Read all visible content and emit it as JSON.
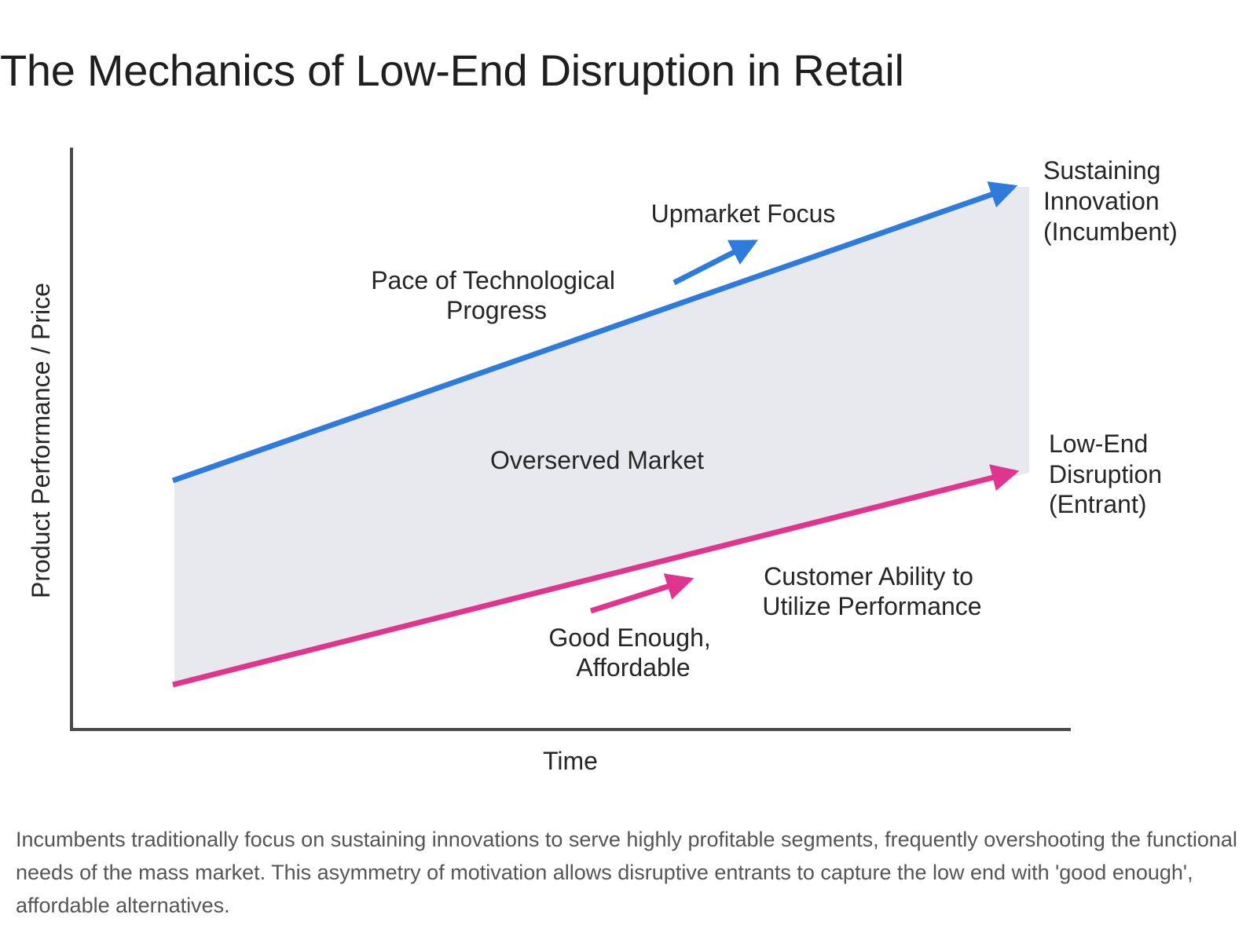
{
  "title": "The Mechanics of Low-End Disruption in Retail",
  "axes": {
    "x_label": "Time",
    "y_label": "Product Performance / Price"
  },
  "region_label": "Overserved Market",
  "incumbent": {
    "end_label": [
      "Sustaining",
      "Innovation",
      "(Incumbent)"
    ],
    "mid_label": [
      "Pace of Technological",
      "Progress"
    ],
    "arrow_label": "Upmarket Focus",
    "color": "#2f7bdc"
  },
  "entrant": {
    "end_label": [
      "Low-End",
      "Disruption",
      "(Entrant)"
    ],
    "mid_label": [
      "Customer Ability to",
      "Utilize Performance"
    ],
    "arrow_label": [
      "Good Enough,",
      "Affordable"
    ],
    "color": "#e0358f"
  },
  "region_color": "#e7e9ee",
  "caption": "Incumbents traditionally focus on sustaining innovations to serve highly profitable segments, frequently overshooting the functional needs of the mass market. This asymmetry of motivation allows disruptive entrants to capture the low end with 'good enough', affordable alternatives."
}
